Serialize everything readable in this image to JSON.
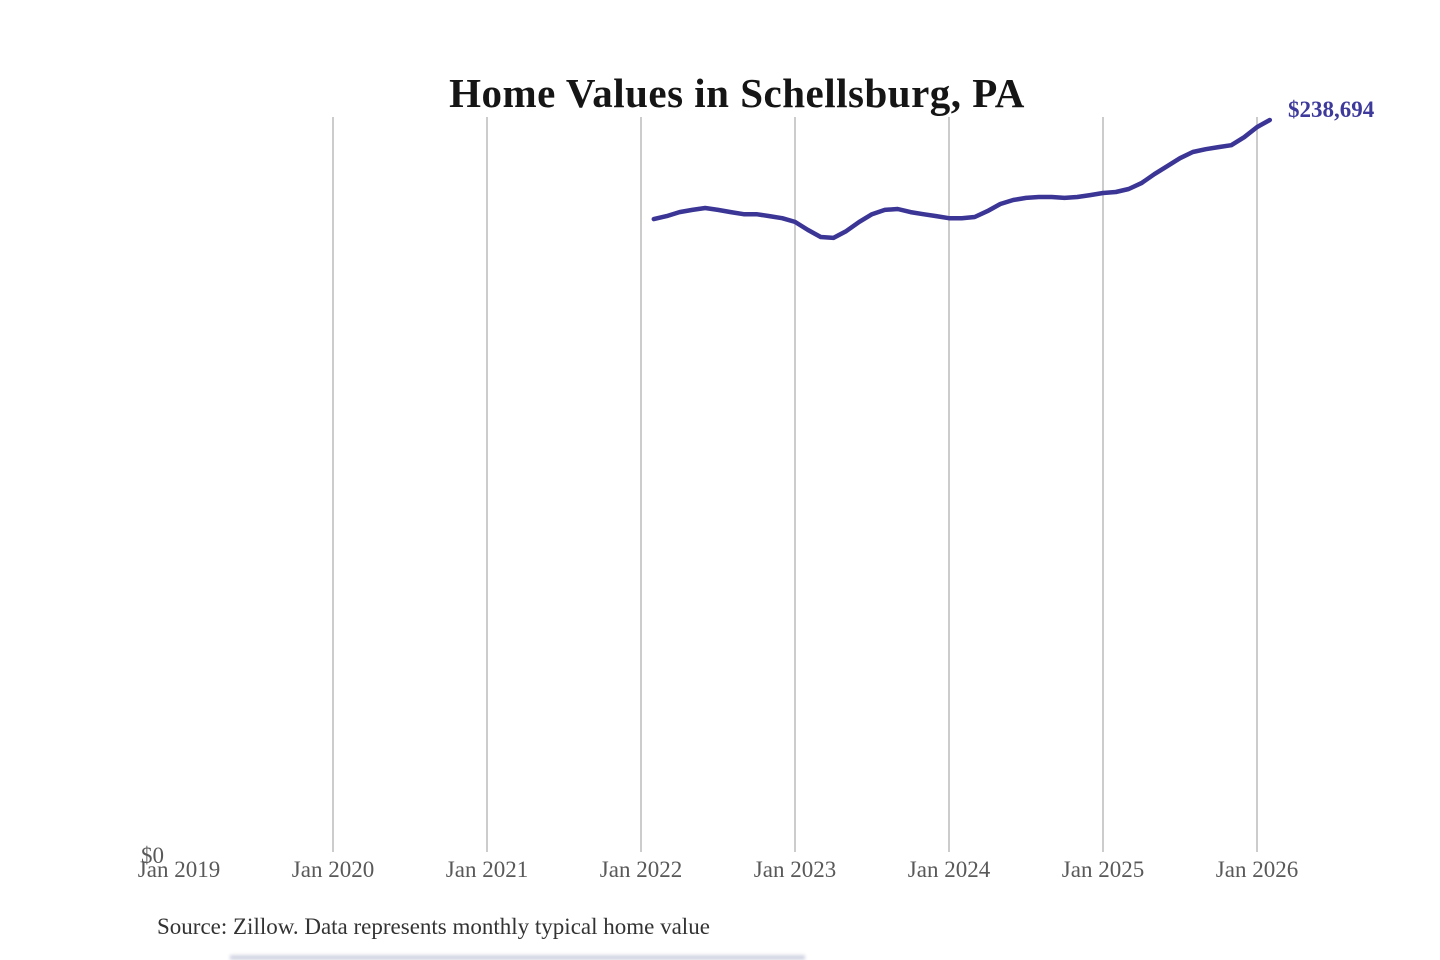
{
  "title": "Home Values in Schellsburg, PA",
  "y_axis": {
    "zero_label": "$0"
  },
  "annotation": {
    "end_value_label": "$238,694"
  },
  "source_note": "Source: Zillow. Data represents monthly typical home value",
  "colors": {
    "line": "#3b3596",
    "end_label": "#3e3a9c",
    "gridline": "#cccccc",
    "axis_text": "#595959",
    "source_text": "#333333",
    "title_text": "#151515"
  },
  "chart_data": {
    "type": "line",
    "title": "Home Values in Schellsburg, PA",
    "xlabel": "",
    "ylabel": "",
    "legend": "none",
    "grid": "vertical-yearly-gridlines",
    "ylim": [
      0,
      240000
    ],
    "x_range": [
      "Jan 2019",
      "Jan 2026"
    ],
    "x_tick_labels": [
      "Jan 2019",
      "Jan 2020",
      "Jan 2021",
      "Jan 2022",
      "Jan 2023",
      "Jan 2024",
      "Jan 2025",
      "Jan 2026"
    ],
    "end_label": "$238,694",
    "end_value": 238694,
    "x": [
      "2022-02",
      "2022-03",
      "2022-04",
      "2022-05",
      "2022-06",
      "2022-07",
      "2022-08",
      "2022-09",
      "2022-10",
      "2022-11",
      "2022-12",
      "2023-01",
      "2023-02",
      "2023-03",
      "2023-04",
      "2023-05",
      "2023-06",
      "2023-07",
      "2023-08",
      "2023-09",
      "2023-10",
      "2023-11",
      "2023-12",
      "2024-01",
      "2024-02",
      "2024-03",
      "2024-04",
      "2024-05",
      "2024-06",
      "2024-07",
      "2024-08",
      "2024-09",
      "2024-10",
      "2024-11",
      "2024-12",
      "2025-01",
      "2025-02",
      "2025-03",
      "2025-04",
      "2025-05",
      "2025-06",
      "2025-07",
      "2025-08",
      "2025-09",
      "2025-10",
      "2025-11",
      "2025-12",
      "2026-01",
      "2026-02"
    ],
    "values": [
      206500,
      207500,
      208800,
      209500,
      210100,
      209500,
      208800,
      208100,
      208100,
      207500,
      206800,
      205600,
      203000,
      200700,
      200400,
      202600,
      205600,
      208100,
      209500,
      209800,
      208800,
      208100,
      207500,
      206800,
      206800,
      207200,
      209100,
      211400,
      212700,
      213400,
      213700,
      213700,
      213400,
      213700,
      214300,
      215000,
      215300,
      216300,
      218200,
      221100,
      223700,
      226300,
      228300,
      229200,
      229900,
      230500,
      233100,
      236400,
      238694
    ]
  }
}
